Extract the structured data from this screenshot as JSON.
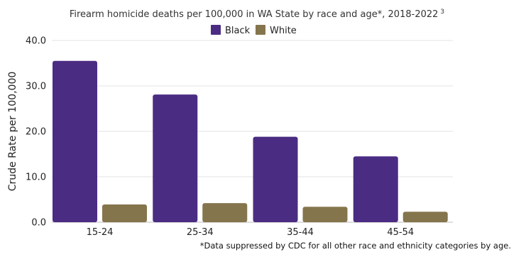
{
  "chart_data": {
    "type": "bar",
    "title": "Firearm homicide deaths per 100,000 in WA State by race and age*, 2018-2022",
    "title_superscript": "3",
    "xlabel": "",
    "ylabel": "Crude Rate per 100,000",
    "ylim": [
      0,
      40
    ],
    "yticks": [
      "0.0",
      "10.0",
      "20.0",
      "30.0",
      "40.0"
    ],
    "grid": true,
    "legend_position": "top-center",
    "categories": [
      "15-24",
      "25-34",
      "35-44",
      "45-54"
    ],
    "series": [
      {
        "name": "Black",
        "color": "#4b2c83",
        "values": [
          35.5,
          28.1,
          18.8,
          14.5
        ]
      },
      {
        "name": "White",
        "color": "#85754d",
        "values": [
          3.9,
          4.2,
          3.4,
          2.3
        ]
      }
    ],
    "footnote": "*Data suppressed by CDC for all other race and ethnicity categories by age."
  }
}
